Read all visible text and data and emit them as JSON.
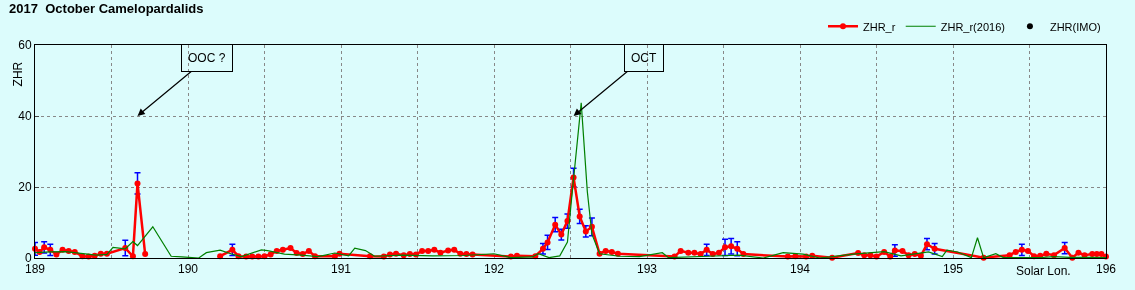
{
  "chart_data": {
    "type": "line",
    "title": "2017  October Camelopardalids",
    "xlabel": "Solar Lon.",
    "ylabel": "ZHR",
    "xlim": [
      189,
      196
    ],
    "ylim": [
      0,
      60
    ],
    "xticks": [
      189,
      {
        "value": 189.5,
        "label": null
      },
      190,
      {
        "value": 190.5,
        "label": null
      },
      191,
      {
        "value": 191.5,
        "label": null
      },
      192,
      {
        "value": 192.5,
        "label": null
      },
      193,
      {
        "value": 193.5,
        "label": null
      },
      194,
      {
        "value": 194.5,
        "label": null
      },
      195,
      {
        "value": 195.5,
        "label": null
      },
      {
        "value": 196,
        "label": "196"
      }
    ],
    "yticks": [
      0,
      20,
      40,
      60
    ],
    "grid": true,
    "legend": "top right",
    "annotations": [
      "OOC ?",
      "OCT"
    ],
    "series": [
      {
        "name": "ZHR_r",
        "color": "#ff0000",
        "marker": "circle",
        "x": [
          189.0,
          189.03,
          189.06,
          189.1,
          189.14,
          189.18,
          189.22,
          189.26,
          189.31,
          189.35,
          189.39,
          189.43,
          189.47,
          189.59,
          189.64,
          189.67,
          189.72,
          189.95,
          190.21,
          190.29,
          190.33,
          190.38,
          190.42,
          190.46,
          190.5,
          190.54,
          190.58,
          190.62,
          190.67,
          190.71,
          190.75,
          190.79,
          190.83,
          190.96,
          190.99,
          191.19,
          191.28,
          191.32,
          191.36,
          191.41,
          191.45,
          191.49,
          191.53,
          191.57,
          191.61,
          191.65,
          191.7,
          191.74,
          191.78,
          191.82,
          191.86,
          192.11,
          192.15,
          192.27,
          192.32,
          192.35,
          192.4,
          192.44,
          192.48,
          192.52,
          192.56,
          192.6,
          192.64,
          192.69,
          192.73,
          192.77,
          192.81,
          193.18,
          193.22,
          193.27,
          193.31,
          193.35,
          193.39,
          193.43,
          193.47,
          193.51,
          193.55,
          193.59,
          193.63,
          193.92,
          193.97,
          194.04,
          194.08,
          194.21,
          194.38,
          194.42,
          194.46,
          194.5,
          194.55,
          194.59,
          194.62,
          194.67,
          194.71,
          194.75,
          194.79,
          194.83,
          194.88,
          195.2,
          195.37,
          195.41,
          195.45,
          195.49,
          195.53,
          195.57,
          195.61,
          195.66,
          195.73,
          195.78,
          195.82,
          195.86,
          195.91,
          195.94,
          195.97,
          196.0
        ],
        "values": [
          2.6,
          1.7,
          3,
          2.3,
          1,
          2.3,
          2,
          1.7,
          0.5,
          0.4,
          0.6,
          1.2,
          1.2,
          2.8,
          0.5,
          21,
          1.1,
          null,
          0.5,
          2.3,
          0.5,
          0.4,
          0.4,
          0.4,
          0.5,
          1,
          2,
          2.3,
          2.8,
          1.4,
          1.1,
          2,
          0.5,
          0.5,
          1.2,
          0.5,
          0.4,
          1,
          1.2,
          0.8,
          1.1,
          1,
          2,
          2,
          2.3,
          1.5,
          2.1,
          2.3,
          1.2,
          1.1,
          1,
          0.4,
          0.6,
          0.5,
          2.6,
          4.4,
          9.4,
          6.6,
          10.4,
          22.7,
          11.7,
          7.5,
          8.8,
          1.2,
          2,
          1.7,
          1.2,
          0.4,
          2,
          1.5,
          1.5,
          1.1,
          2.3,
          1.1,
          1.5,
          3,
          3.3,
          2.6,
          1.1,
          0.4,
          0.5,
          0.4,
          0.6,
          0.1,
          1.4,
          0.8,
          0.8,
          0.4,
          1.7,
          0.4,
          2.1,
          2,
          0.8,
          1.1,
          0.6,
          3.9,
          2.6,
          0.1,
          0.8,
          1.7,
          2.3,
          2,
          0.5,
          0.6,
          1.2,
          0.8,
          2.8,
          0.1,
          1.5,
          0.8,
          1.1,
          1.1,
          1.1,
          0.4
        ],
        "errors": [
          1.8,
          null,
          1.6,
          1.6,
          null,
          null,
          null,
          null,
          null,
          null,
          null,
          null,
          null,
          2.2,
          null,
          3,
          null,
          null,
          null,
          1.6,
          null,
          null,
          null,
          null,
          null,
          null,
          null,
          null,
          null,
          null,
          null,
          null,
          null,
          null,
          null,
          null,
          null,
          null,
          null,
          null,
          null,
          null,
          null,
          null,
          null,
          null,
          null,
          null,
          null,
          null,
          null,
          null,
          null,
          null,
          1.5,
          2,
          2,
          1.5,
          2,
          2.6,
          2,
          1.6,
          2.5,
          null,
          null,
          null,
          null,
          null,
          null,
          null,
          null,
          null,
          1.6,
          null,
          null,
          2.3,
          2.2,
          2,
          null,
          null,
          null,
          null,
          null,
          null,
          null,
          null,
          null,
          null,
          null,
          null,
          1.6,
          null,
          null,
          null,
          null,
          1.6,
          1.5,
          null,
          null,
          null,
          1.6,
          null,
          null,
          null,
          null,
          null,
          1.6,
          null,
          null,
          null,
          null,
          null,
          null,
          null
        ]
      },
      {
        "name": "ZHR_r(2016)",
        "color": "#008000",
        "marker": "none",
        "x": [
          189.0,
          189.1,
          189.2,
          189.3,
          189.4,
          189.47,
          189.51,
          189.59,
          189.64,
          189.67,
          189.77,
          189.89,
          189.96,
          190.07,
          190.12,
          190.21,
          190.28,
          190.35,
          190.48,
          190.52,
          190.63,
          190.74,
          190.85,
          190.96,
          191.05,
          191.09,
          191.16,
          191.22,
          191.4,
          191.6,
          191.8,
          192.0,
          192.11,
          192.25,
          192.29,
          192.36,
          192.43,
          192.48,
          192.51,
          192.57,
          192.61,
          192.64,
          192.69,
          192.82,
          192.95,
          193.1,
          193.14,
          193.4,
          193.6,
          193.76,
          193.89,
          194.02,
          194.13,
          194.35,
          194.55,
          194.66,
          194.84,
          194.93,
          194.96,
          195.03,
          195.12,
          195.16,
          195.2,
          195.28,
          195.33,
          195.57,
          195.66,
          195.76,
          195.9,
          196.0
        ],
        "values": [
          1.5,
          1.7,
          1.8,
          1.3,
          0.8,
          1,
          3,
          2.6,
          4.6,
          3.5,
          8.8,
          0.5,
          0.3,
          0,
          1.5,
          2.2,
          1.2,
          0.4,
          2.3,
          2.1,
          1.1,
          0.8,
          0.4,
          1.4,
          0.6,
          2.8,
          2.1,
          0.5,
          0.8,
          0.6,
          0.7,
          1.2,
          0.1,
          0.3,
          1.2,
          0.1,
          0.6,
          4.5,
          18,
          43.7,
          18.7,
          6.7,
          1.2,
          0.5,
          0.4,
          1.5,
          0.1,
          0.5,
          0.8,
          0,
          1.5,
          1.1,
          0,
          1.1,
          1.8,
          0.6,
          1.7,
          0.4,
          2.2,
          1.7,
          0.1,
          5.7,
          0.1,
          1.2,
          0.1,
          0.1,
          0.4,
          0.2,
          0.2,
          0.1
        ]
      },
      {
        "name": "ZHR(IMO)",
        "color": "#000000",
        "type": "scatter",
        "marker": "circle"
      }
    ]
  }
}
